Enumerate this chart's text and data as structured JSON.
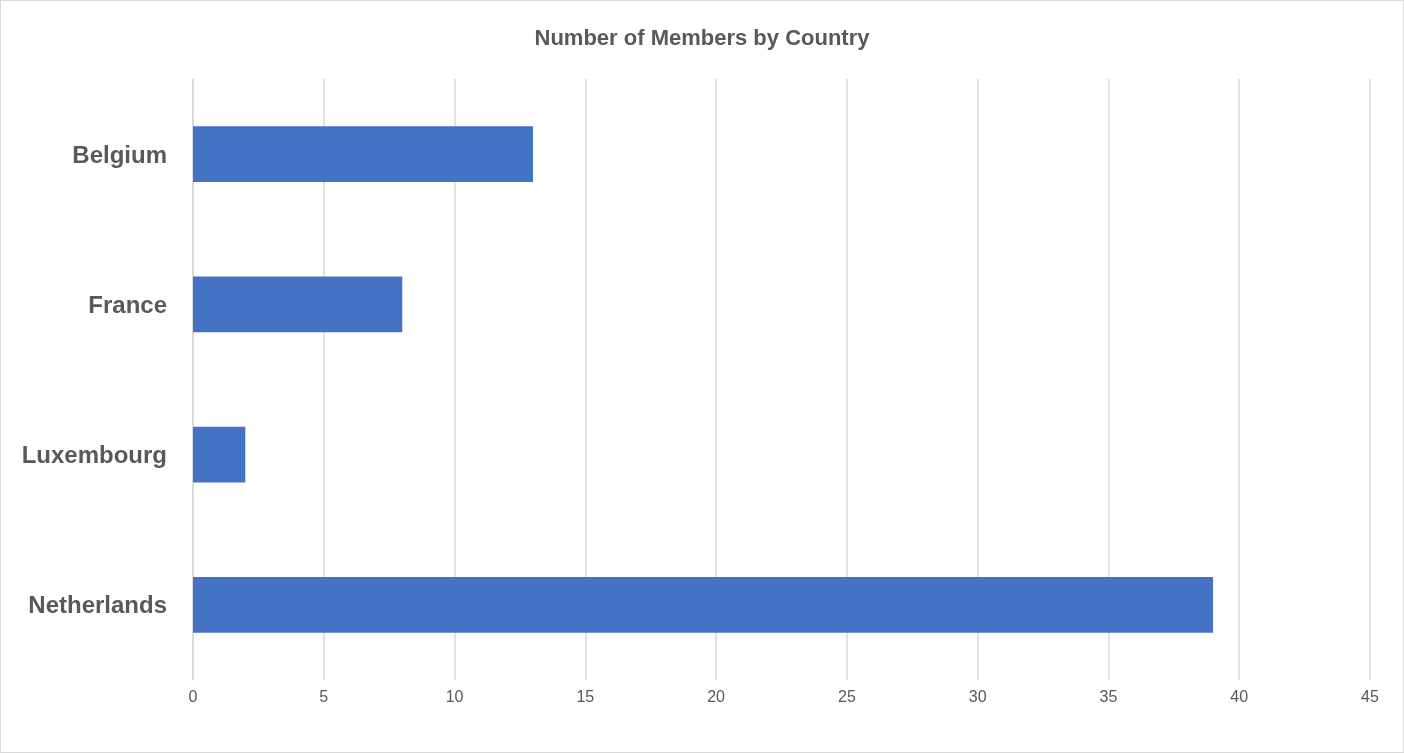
{
  "chart_data": {
    "type": "bar",
    "title": "Number of Members by Country",
    "orientation": "horizontal",
    "categories": [
      "Belgium",
      "France",
      "Luxembourg",
      "Netherlands"
    ],
    "values": [
      13,
      8,
      2,
      39
    ],
    "color": "#4472c4",
    "xlim": [
      0,
      45
    ],
    "xticks": [
      0,
      5,
      10,
      15,
      20,
      25,
      30,
      35,
      40,
      45
    ],
    "grid": "x"
  }
}
